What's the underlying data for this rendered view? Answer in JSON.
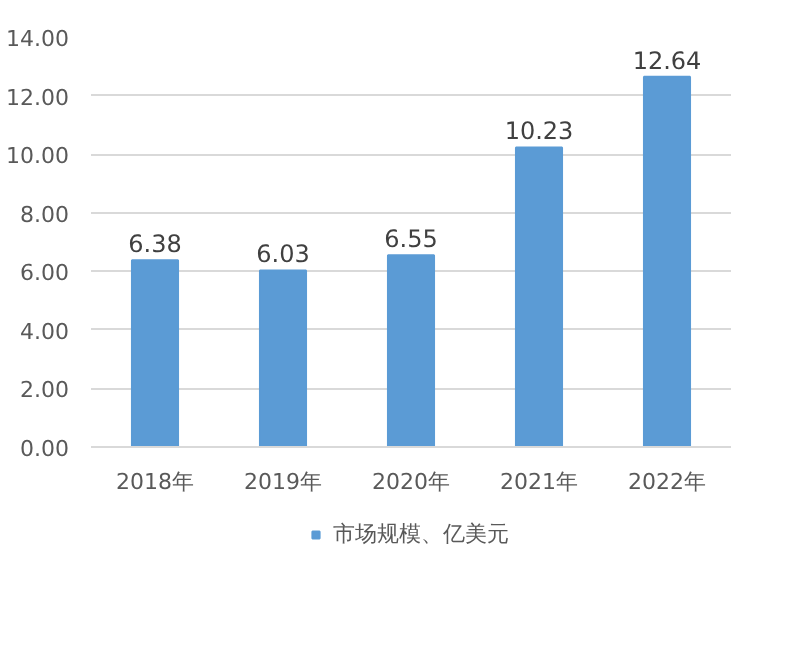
{
  "chart_data": {
    "type": "bar",
    "categories": [
      "2018年",
      "2019年",
      "2020年",
      "2021年",
      "2022年"
    ],
    "series": [
      {
        "name": "市场规模、亿美元",
        "color": "#5b9bd5",
        "values": [
          6.38,
          6.03,
          6.55,
          10.23,
          12.64
        ]
      }
    ],
    "ylim": [
      0,
      14
    ],
    "yticks": [
      {
        "value": 0,
        "label": "0.00"
      },
      {
        "value": 2,
        "label": "2.00"
      },
      {
        "value": 4,
        "label": "4.00"
      },
      {
        "value": 6,
        "label": "6.00"
      },
      {
        "value": 8,
        "label": "8.00"
      },
      {
        "value": 10,
        "label": "10.00"
      },
      {
        "value": 12,
        "label": "12.00"
      },
      {
        "value": 14,
        "label": "14.00"
      }
    ],
    "grid": "y",
    "legend": "bottom",
    "data_labels": true
  }
}
